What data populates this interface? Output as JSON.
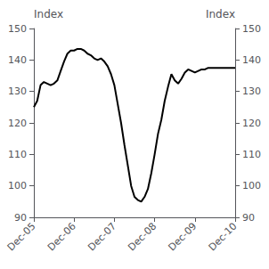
{
  "chart_data": {
    "type": "line",
    "ylabel": "Index",
    "y2label": "Index",
    "color": "#000000",
    "grid": false,
    "x": [
      0,
      1,
      2,
      3,
      4,
      5,
      6,
      7,
      8,
      9,
      10,
      11,
      12,
      13,
      14,
      15,
      16,
      17,
      18,
      19,
      20,
      21,
      22,
      23,
      24,
      25,
      26,
      27,
      28,
      29,
      30,
      31,
      32,
      33,
      34,
      35,
      36,
      37,
      38,
      39,
      40,
      41,
      42,
      43,
      44,
      45,
      46,
      47,
      48,
      49,
      50,
      51,
      52,
      53,
      54,
      55,
      56,
      57,
      58,
      59,
      60
    ],
    "values": [
      125.0,
      127.0,
      132.0,
      133.0,
      132.5,
      132.0,
      132.5,
      133.5,
      136.5,
      139.5,
      142.0,
      143.0,
      143.0,
      143.5,
      143.5,
      143.0,
      142.0,
      141.5,
      140.5,
      140.0,
      140.5,
      139.5,
      138.0,
      135.5,
      132.0,
      126.0,
      120.0,
      113.0,
      106.5,
      100.0,
      96.5,
      95.5,
      95.0,
      96.5,
      99.0,
      104.0,
      110.0,
      116.5,
      121.0,
      127.0,
      131.5,
      135.5,
      133.5,
      132.5,
      134.0,
      136.0,
      137.0,
      136.5,
      136.0,
      136.5,
      137.0,
      137.0,
      137.5,
      137.5,
      137.5,
      137.5,
      137.5,
      137.5,
      137.5,
      137.5,
      137.5
    ],
    "xlim": [
      0,
      60
    ],
    "xticks": [
      {
        "value": 0,
        "label": "Dec-05"
      },
      {
        "value": 12,
        "label": "Dec-06"
      },
      {
        "value": 24,
        "label": "Dec-07"
      },
      {
        "value": 36,
        "label": "Dec-08"
      },
      {
        "value": 48,
        "label": "Dec-09"
      },
      {
        "value": 60,
        "label": "Dec-10"
      }
    ],
    "ylim": [
      90,
      150
    ],
    "yticks": [
      90,
      100,
      110,
      120,
      130,
      140,
      150
    ],
    "y2lim": [
      90,
      150
    ],
    "y2ticks": [
      90,
      100,
      110,
      120,
      130,
      140,
      150
    ]
  }
}
